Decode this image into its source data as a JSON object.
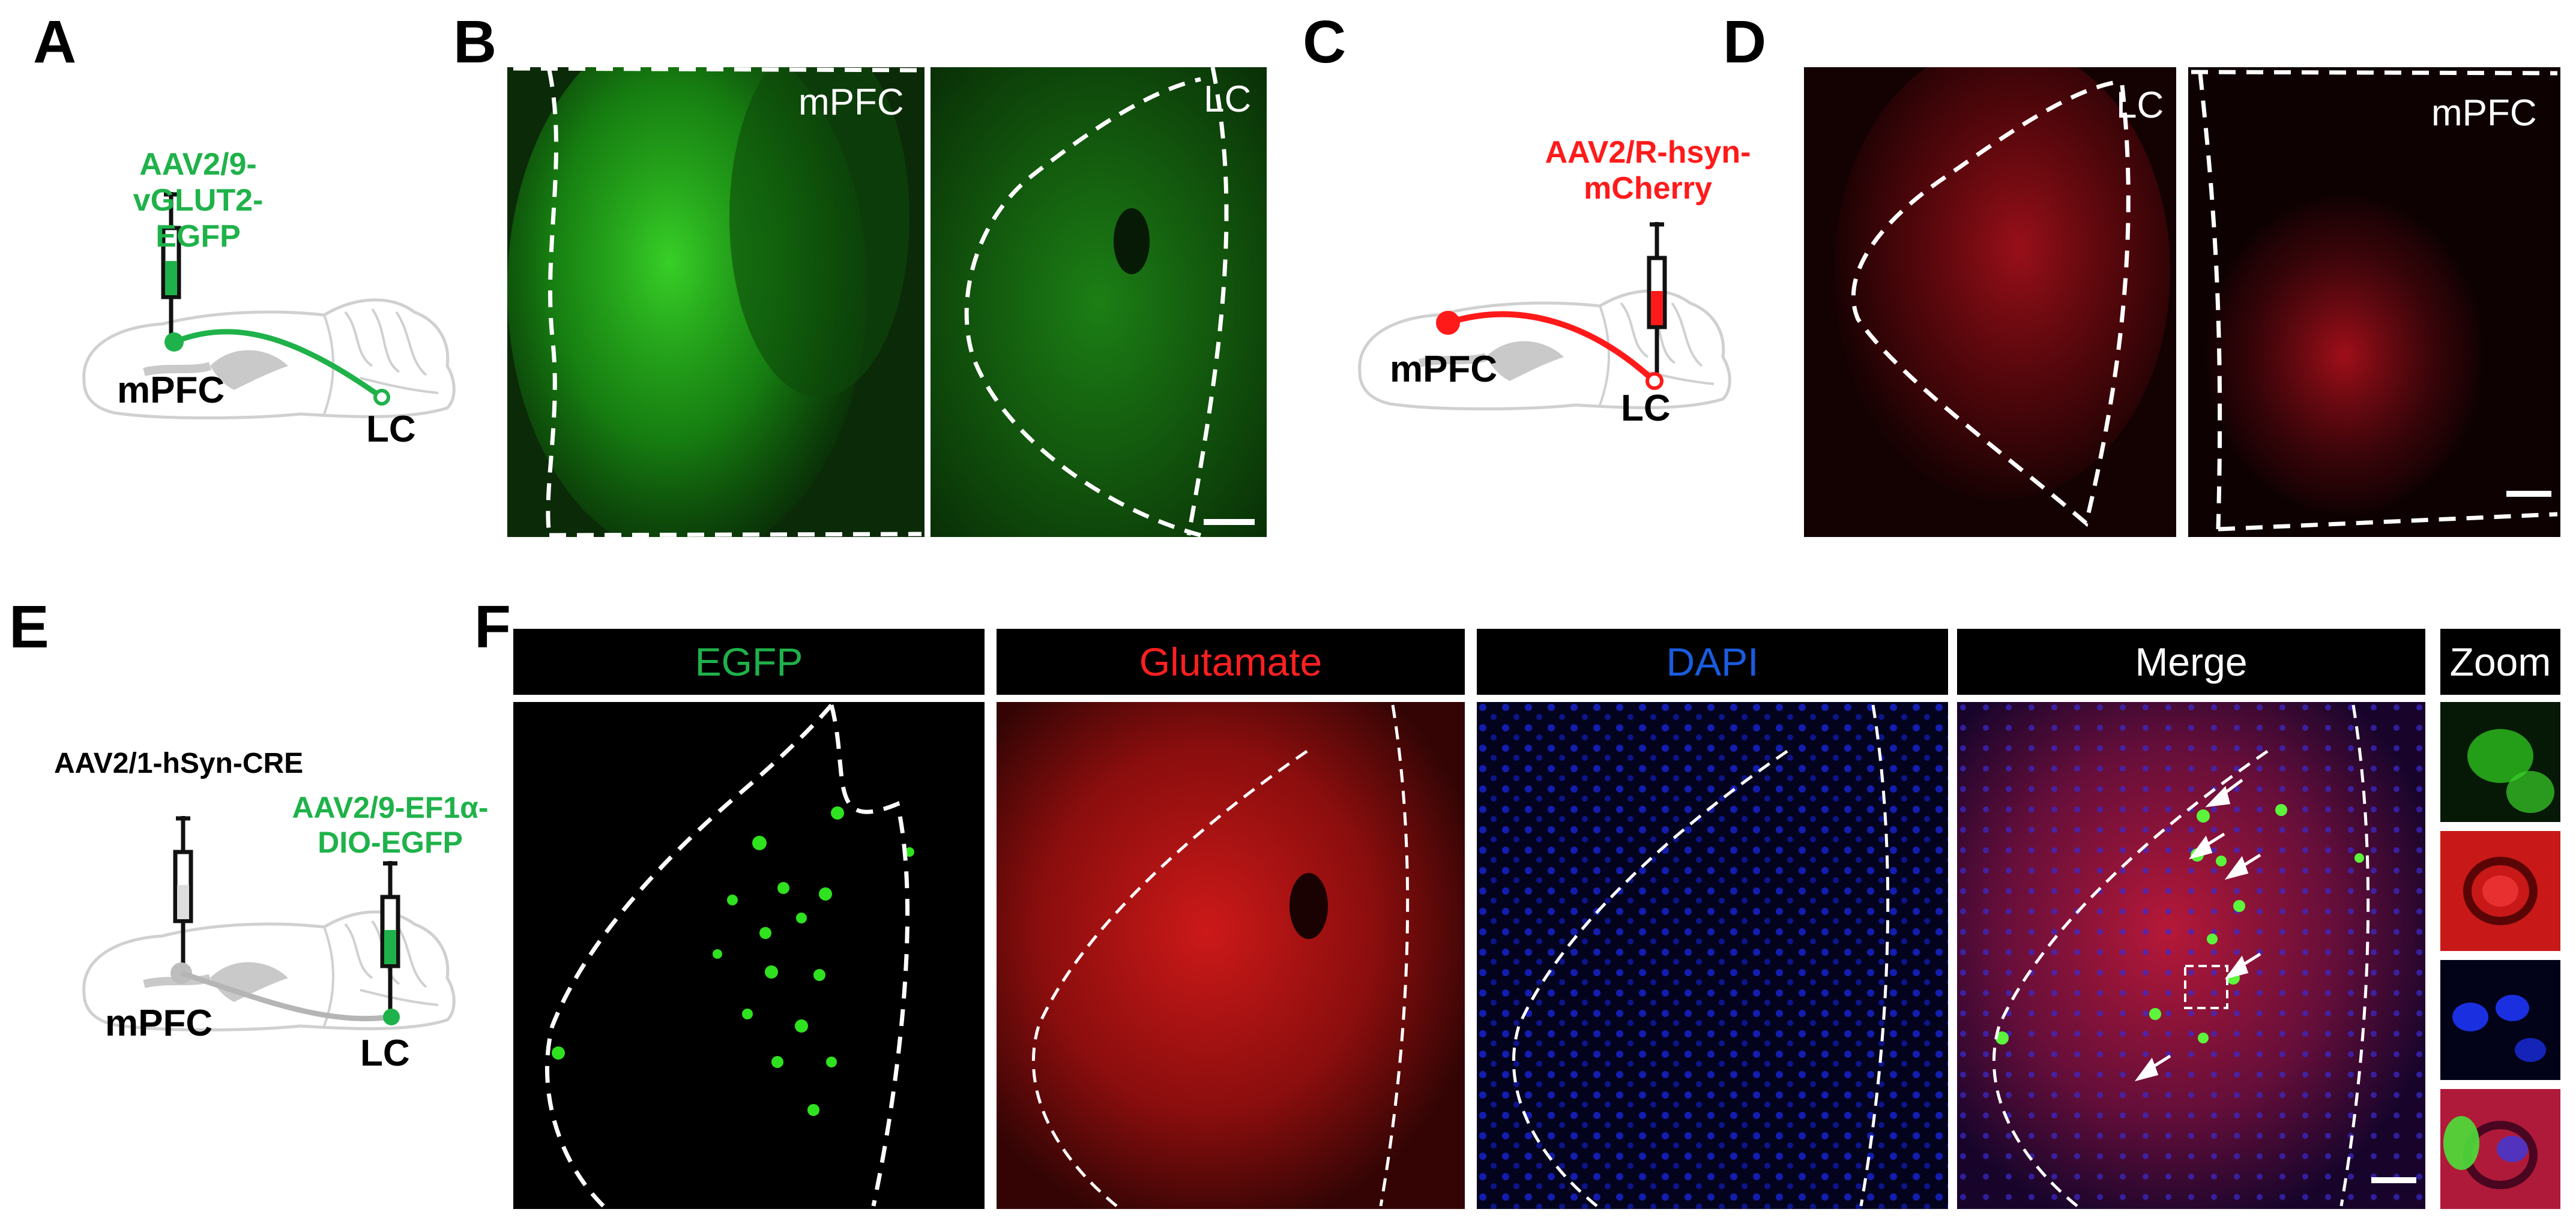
{
  "panel_letters": [
    "A",
    "B",
    "C",
    "D",
    "E",
    "F"
  ],
  "panel_a": {
    "virus_line1": "AAV2/9-vGLUT2-",
    "virus_line2": "EGFP",
    "virus_color": "#1fb24a",
    "source_label": "mPFC",
    "target_label": "LC"
  },
  "panel_b": {
    "left_label": "mPFC",
    "right_label": "LC",
    "stain_color": "#22c21e"
  },
  "panel_c": {
    "virus_line1": "AAV2/R-hsyn-",
    "virus_line2": "mCherry",
    "virus_color": "#ff1a1a",
    "source_label": "mPFC",
    "target_label": "LC"
  },
  "panel_d": {
    "left_label": "LC",
    "right_label": "mPFC",
    "stain_color": "#e0141a"
  },
  "panel_e": {
    "virus1": "AAV2/1-hSyn-CRE",
    "virus2_line1": "AAV2/9-EF1α-",
    "virus2_line2": "DIO-EGFP",
    "virus2_color": "#1fb24a",
    "source_label": "mPFC",
    "target_label": "LC"
  },
  "panel_f": {
    "headers": [
      {
        "label": "EGFP",
        "color": "#1fb24a"
      },
      {
        "label": "Glutamate",
        "color": "#ff2020"
      },
      {
        "label": "DAPI",
        "color": "#1a5ce0"
      },
      {
        "label": "Merge",
        "color": "#ffffff"
      },
      {
        "label": "Zoom",
        "color": "#ffffff"
      }
    ]
  }
}
